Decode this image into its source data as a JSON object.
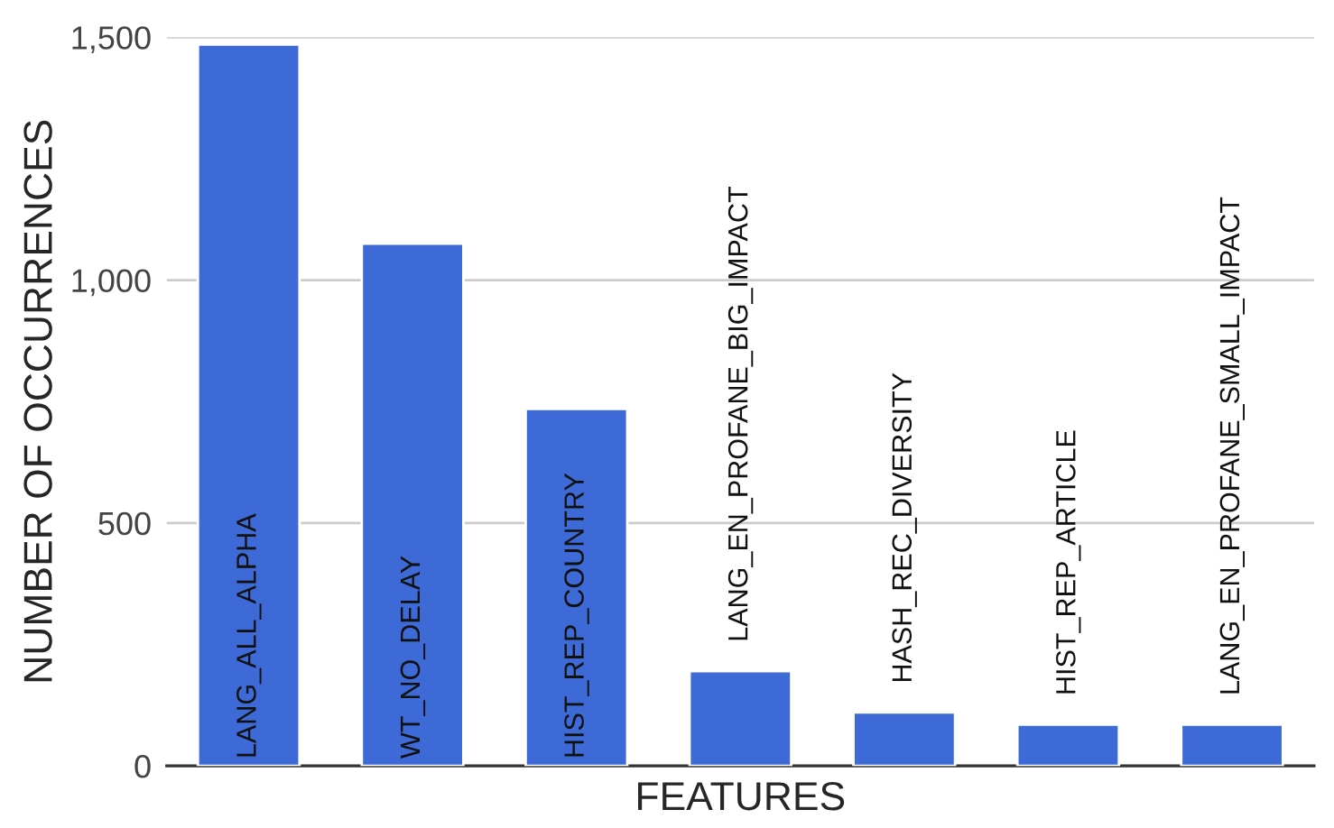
{
  "chart_data": {
    "type": "bar",
    "xlabel": "FEATURES",
    "ylabel": "NUMBER OF OCCURRENCES",
    "categories": [
      "LANG_ALL_ALPHA",
      "WT_NO_DELAY",
      "HIST_REP_COUNTRY",
      "LANG_EN_PROFANE_BIG_IMPACT",
      "HASH_REC_DIVERSITY",
      "HIST_REP_ARTICLE",
      "LANG_EN_PROFANE_SMALL_IMPACT"
    ],
    "values": [
      1485,
      1075,
      735,
      195,
      110,
      85,
      85
    ],
    "color": "#3d6ad6",
    "ylim": [
      0,
      1500
    ],
    "yticks": [
      0,
      {
        "value": 500,
        "label": "500"
      },
      {
        "value": 1000,
        "label": "1,000"
      },
      {
        "value": 1500,
        "label": "1,500"
      }
    ],
    "grid": "y",
    "legend": false
  }
}
